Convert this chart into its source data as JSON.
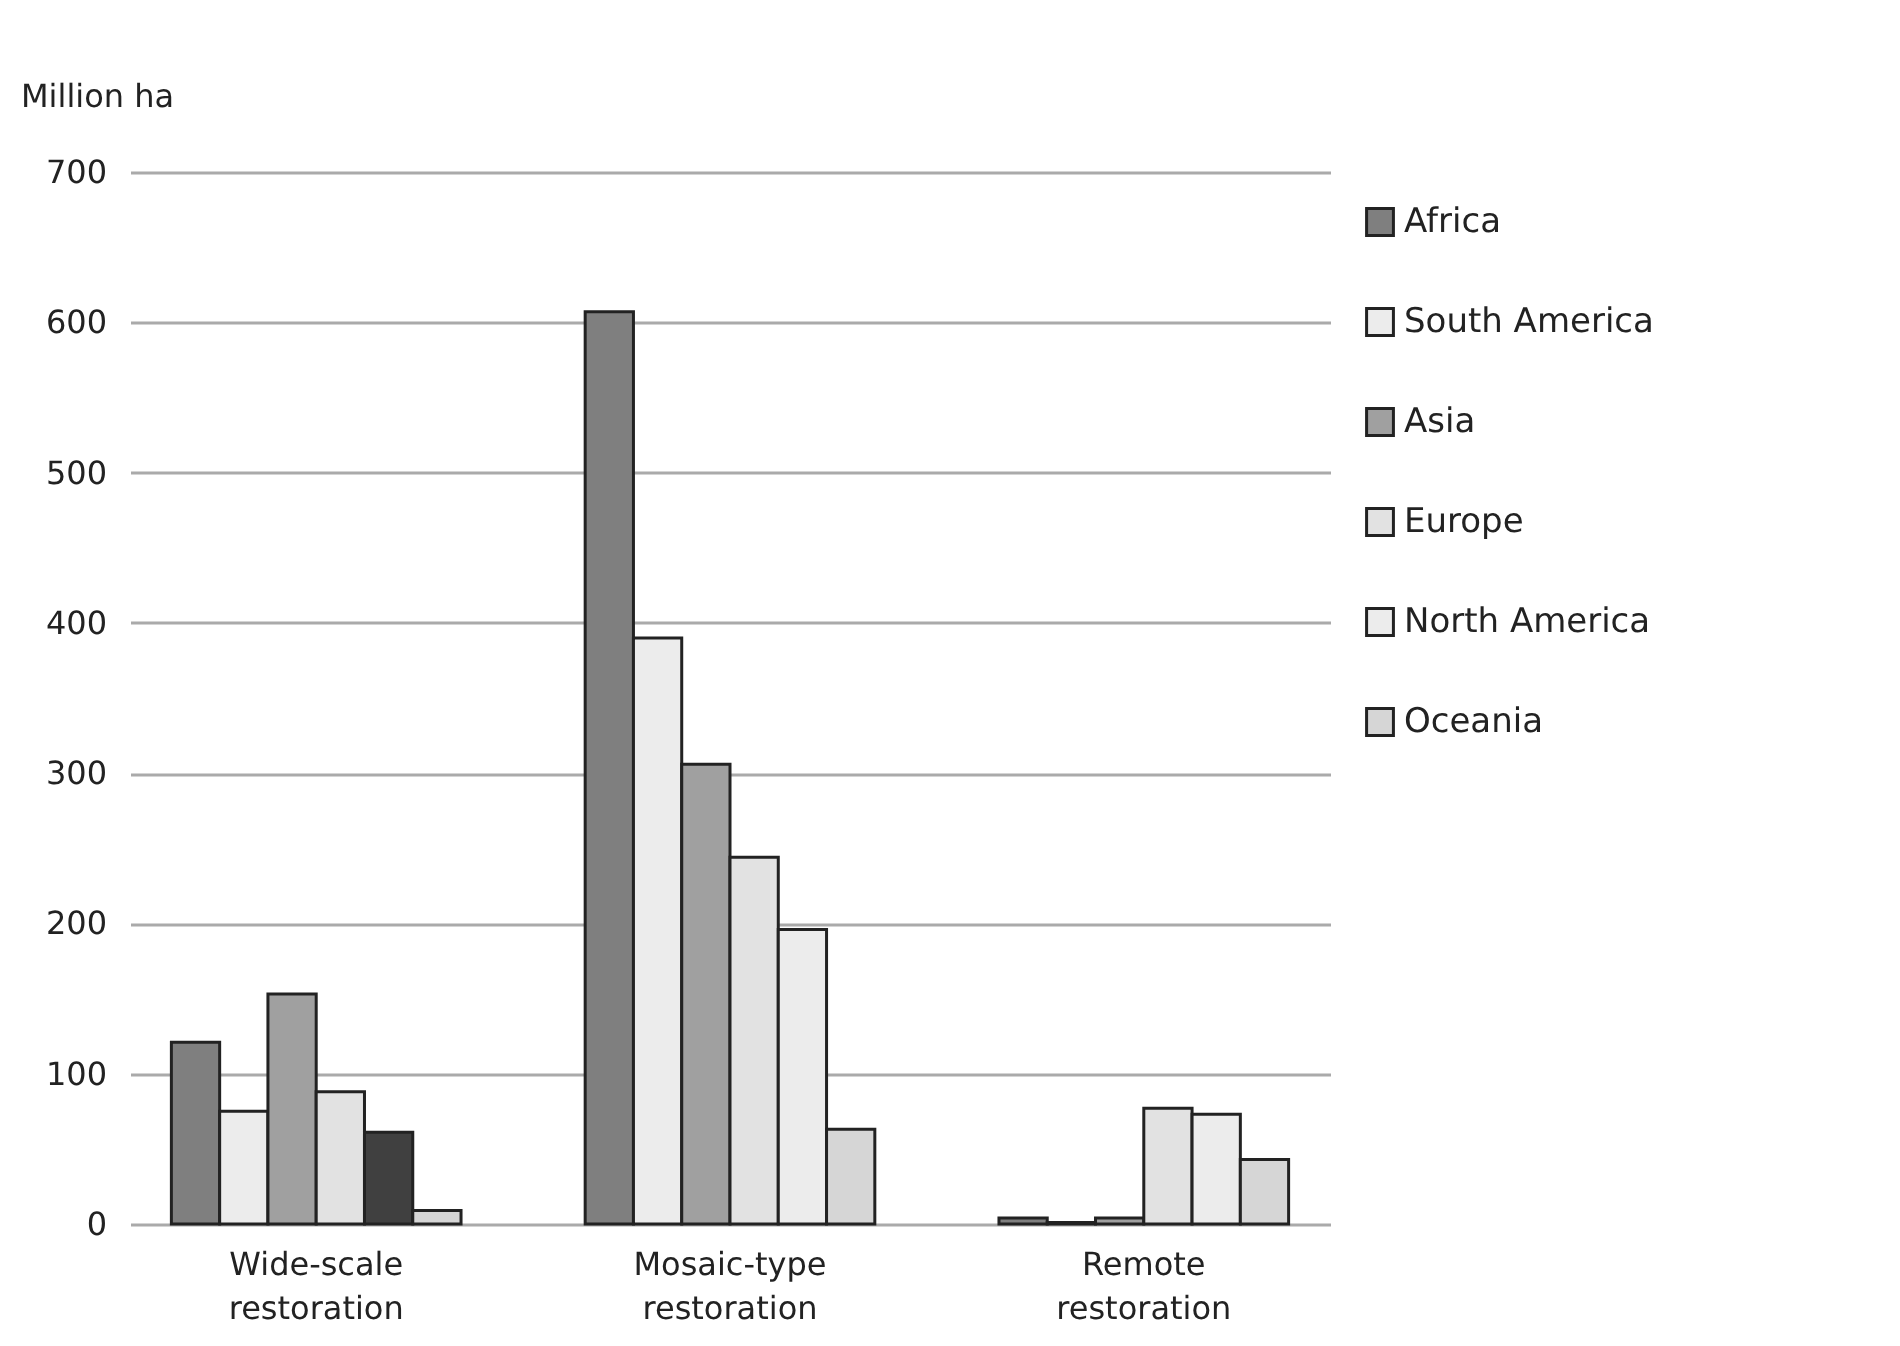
{
  "chart_data": {
    "type": "bar",
    "ylabel": "Million ha",
    "categories": [
      "Wide-scale restoration",
      "Mosaic-type restoration",
      "Remote restoration"
    ],
    "series": [
      {
        "name": "Africa",
        "color": "#7f7f7f",
        "values": [
          121,
          607,
          4
        ]
      },
      {
        "name": "South America",
        "color": "#ececec",
        "values": [
          75,
          390,
          1
        ]
      },
      {
        "name": "Asia",
        "color": "#a0a0a0",
        "values": [
          153,
          306,
          4
        ]
      },
      {
        "name": "Europe",
        "color": "#e2e2e2",
        "values": [
          88,
          244,
          77
        ]
      },
      {
        "name": "North America",
        "color": "#ececec",
        "colors": [
          "#404040",
          "#ececec",
          "#ececec"
        ],
        "values": [
          61,
          196,
          73
        ]
      },
      {
        "name": "Oceania",
        "color": "#d6d6d6",
        "values": [
          9,
          63,
          43
        ]
      }
    ],
    "ylim": [
      0,
      700
    ],
    "yticks": [
      0,
      100,
      200,
      300,
      400,
      500,
      600,
      700
    ],
    "grid": "y",
    "legend": "right"
  }
}
